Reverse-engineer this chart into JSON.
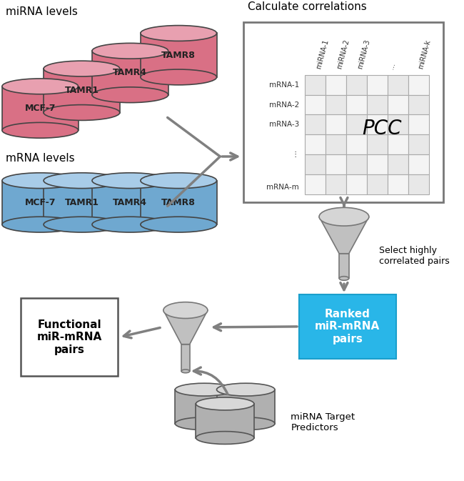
{
  "background_color": "#ffffff",
  "mirna_label": "miRNA levels",
  "mrna_label": "mRNA levels",
  "calc_corr_label": "Calculate correlations",
  "select_label": "Select highly\ncorrelated pairs",
  "ranked_label": "Ranked\nmiR-mRNA\npairs",
  "functional_label": "Functional\nmiR-mRNA\npairs",
  "predictor_label": "miRNA Target\nPredictors",
  "pcc_label": "PCC",
  "cylinder_labels_pink": [
    "MCF-7",
    "TAMR1",
    "TAMR4",
    "TAMR8"
  ],
  "cylinder_labels_blue": [
    "MCF-7",
    "TAMR1",
    "TAMR4",
    "TAMR8"
  ],
  "mirna_col_labels": [
    "miRNA-1",
    "miRNA-2",
    "miRNA-3",
    "...",
    "miRNA-k"
  ],
  "mrna_row_labels": [
    "mRNA-1",
    "mRNA-2",
    "mRNA-3",
    "⋮",
    "mRNA-m"
  ],
  "pink_body": "#d97085",
  "pink_top": "#e8a0b0",
  "pink_edge": "#444444",
  "blue_body": "#6fa8d0",
  "blue_top": "#a8cce8",
  "blue_edge": "#444444",
  "gray_body": "#b0b0b0",
  "gray_top": "#d8d8d8",
  "gray_edge": "#555555",
  "ranked_bg": "#29b6e8",
  "ranked_edge": "#1a9fcc",
  "arrow_color": "#808080",
  "grid_line_color": "#aaaaaa",
  "grid_fill_light": "#e8e8e8",
  "grid_fill_white": "#f4f4f4",
  "mat_edge": "#777777",
  "func_edge": "#555555"
}
